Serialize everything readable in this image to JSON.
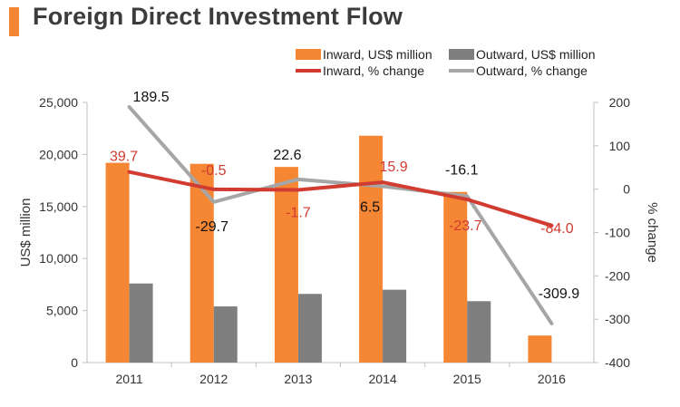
{
  "header": {
    "title": "Foreign Direct Investment Flow"
  },
  "chart_data": {
    "type": "bar",
    "categories": [
      "2011",
      "2012",
      "2013",
      "2014",
      "2015",
      "2016"
    ],
    "series": [
      {
        "name": "Inward, US$ million",
        "kind": "bar",
        "axis": "left",
        "color": "#f58634",
        "values": [
          19200,
          19100,
          18800,
          21800,
          16400,
          2600
        ]
      },
      {
        "name": "Outward, US$ million",
        "kind": "bar",
        "axis": "left",
        "color": "#7f7f7f",
        "values": [
          7600,
          5400,
          6600,
          7000,
          5900,
          null
        ]
      },
      {
        "name": "Inward, % change",
        "kind": "line",
        "axis": "right",
        "color": "#d13b30",
        "values": [
          39.7,
          -0.5,
          -1.7,
          15.9,
          -23.7,
          -84.0
        ],
        "labels": [
          "39.7",
          "-0.5",
          "-1.7",
          "15.9",
          "-23.7",
          "-84.0"
        ]
      },
      {
        "name": "Outward, % change",
        "kind": "line",
        "axis": "right",
        "color": "#a6a6a6",
        "values": [
          189.5,
          -29.7,
          22.6,
          6.5,
          -16.1,
          -309.9
        ],
        "labels": [
          "189.5",
          "-29.7",
          "22.6",
          "6.5",
          "-16.1",
          "-309.9"
        ]
      }
    ],
    "ylabel": "US$ million",
    "y2label": "% change",
    "ylim": [
      0,
      25000
    ],
    "yticks": [
      "0",
      "5,000",
      "10,000",
      "15,000",
      "20,000",
      "25,000"
    ],
    "y2lim": [
      -400,
      200
    ],
    "y2ticks": [
      "-400",
      "-300",
      "-200",
      "-100",
      "0",
      "100",
      "200"
    ],
    "legend_position": "top-right",
    "grid": false
  }
}
